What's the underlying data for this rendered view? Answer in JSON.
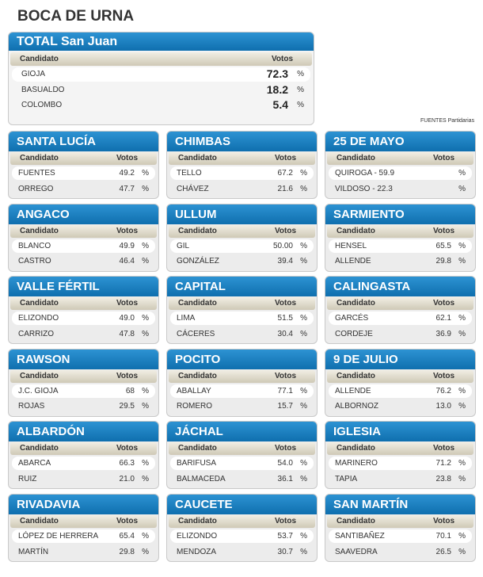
{
  "title": "BOCA DE URNA",
  "columns": [
    "Candidato",
    "Votos"
  ],
  "unit": "%",
  "source": "FUENTES Partidarias",
  "total": {
    "title": "TOTAL San Juan",
    "rows": [
      {
        "name": "GIOJA",
        "votes": "72.3"
      },
      {
        "name": "BASUALDO",
        "votes": "18.2"
      },
      {
        "name": "COLOMBO",
        "votes": "5.4"
      }
    ]
  },
  "sections": [
    {
      "title": "SANTA LUCÍA",
      "rows": [
        {
          "name": "FUENTES",
          "votes": "49.2"
        },
        {
          "name": "ORREGO",
          "votes": "47.7"
        }
      ]
    },
    {
      "title": "CHIMBAS",
      "rows": [
        {
          "name": "TELLO",
          "votes": "67.2"
        },
        {
          "name": "CHÁVEZ",
          "votes": "21.6"
        }
      ]
    },
    {
      "title": "25 DE MAYO",
      "rows": [
        {
          "name": "QUIROGA - 59.9"
        },
        {
          "name": "VILDOSO - 22.3"
        }
      ]
    },
    {
      "title": "ANGACO",
      "rows": [
        {
          "name": "BLANCO",
          "votes": "49.9"
        },
        {
          "name": "CASTRO",
          "votes": "46.4"
        }
      ]
    },
    {
      "title": "ULLUM",
      "rows": [
        {
          "name": "GIL",
          "votes": "50.00"
        },
        {
          "name": "GONZÁLEZ",
          "votes": "39.4"
        }
      ]
    },
    {
      "title": "SARMIENTO",
      "rows": [
        {
          "name": "HENSEL",
          "votes": "65.5"
        },
        {
          "name": "ALLENDE",
          "votes": "29.8"
        }
      ]
    },
    {
      "title": "VALLE FÉRTIL",
      "rows": [
        {
          "name": "ELIZONDO",
          "votes": "49.0"
        },
        {
          "name": "CARRIZO",
          "votes": "47.8"
        }
      ]
    },
    {
      "title": "CAPITAL",
      "rows": [
        {
          "name": "LIMA",
          "votes": "51.5"
        },
        {
          "name": "CÁCERES",
          "votes": "30.4"
        }
      ]
    },
    {
      "title": "CALINGASTA",
      "rows": [
        {
          "name": "GARCÉS",
          "votes": "62.1"
        },
        {
          "name": "CORDEJE",
          "votes": "36.9"
        }
      ]
    },
    {
      "title": "RAWSON",
      "rows": [
        {
          "name": "J.C. GIOJA",
          "votes": "68"
        },
        {
          "name": "ROJAS",
          "votes": "29.5"
        }
      ]
    },
    {
      "title": "POCITO",
      "rows": [
        {
          "name": "ABALLAY",
          "votes": "77.1"
        },
        {
          "name": "ROMERO",
          "votes": "15.7"
        }
      ]
    },
    {
      "title": "9 DE JULIO",
      "rows": [
        {
          "name": "ALLENDE",
          "votes": "76.2"
        },
        {
          "name": "ALBORNOZ",
          "votes": "13.0"
        }
      ]
    },
    {
      "title": "ALBARDÓN",
      "rows": [
        {
          "name": "ABARCA",
          "votes": "66.3"
        },
        {
          "name": "RUIZ",
          "votes": "21.0"
        }
      ]
    },
    {
      "title": "JÁCHAL",
      "rows": [
        {
          "name": "BARIFUSA",
          "votes": "54.0"
        },
        {
          "name": "BALMACEDA",
          "votes": "36.1"
        }
      ]
    },
    {
      "title": "IGLESIA",
      "rows": [
        {
          "name": "MARINERO",
          "votes": "71.2"
        },
        {
          "name": "TAPIA",
          "votes": "23.8"
        }
      ]
    },
    {
      "title": "RIVADAVIA",
      "rows": [
        {
          "name": "LÓPEZ DE HERRERA",
          "votes": "65.4"
        },
        {
          "name": "MARTÍN",
          "votes": "29.8"
        }
      ]
    },
    {
      "title": "CAUCETE",
      "rows": [
        {
          "name": "ELIZONDO",
          "votes": "53.7"
        },
        {
          "name": "MENDOZA",
          "votes": "30.7"
        }
      ]
    },
    {
      "title": "SAN MARTÍN",
      "rows": [
        {
          "name": "SANTIBAÑEZ",
          "votes": "70.1"
        },
        {
          "name": "SAAVEDRA",
          "votes": "26.5"
        }
      ]
    }
  ]
}
